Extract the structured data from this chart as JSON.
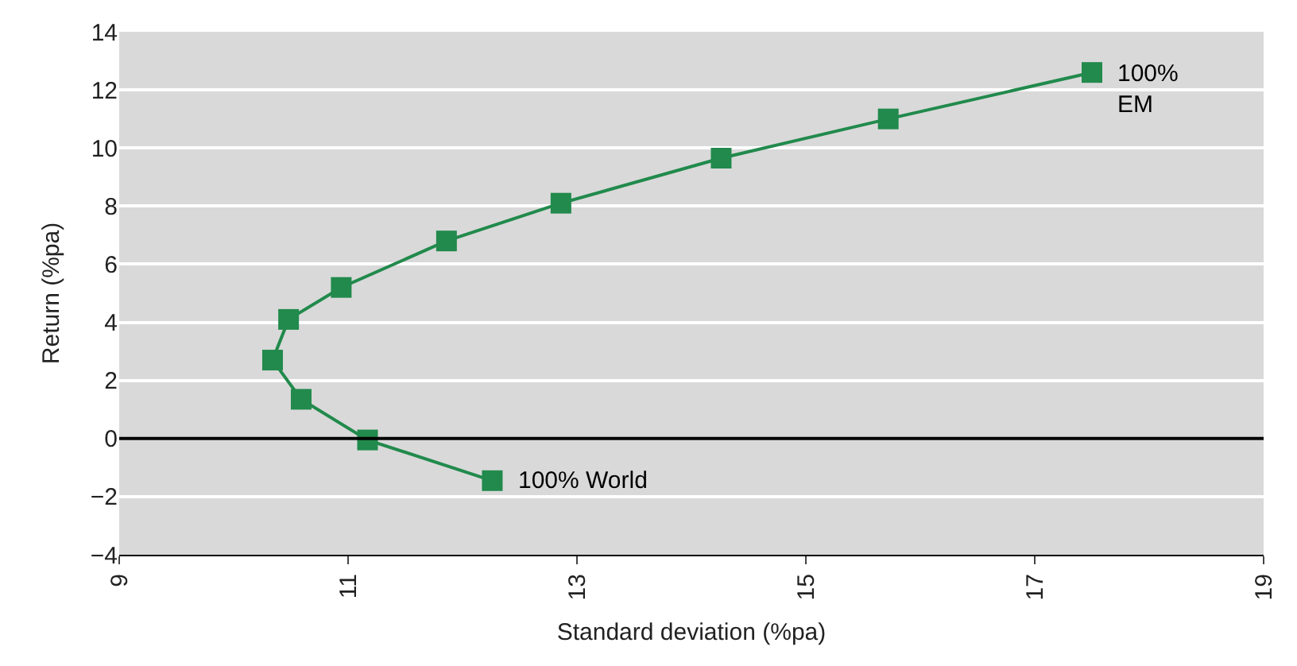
{
  "chart_data": {
    "type": "line",
    "xlabel": "Standard deviation (%pa)",
    "ylabel": "Return (%pa)",
    "x": [
      17.5,
      15.72,
      14.26,
      12.86,
      11.86,
      10.94,
      10.48,
      10.34,
      10.59,
      11.17,
      12.26
    ],
    "series": [
      {
        "color": "#218a4c",
        "values": [
          12.6,
          11.0,
          9.65,
          8.1,
          6.8,
          5.2,
          4.1,
          2.7,
          1.35,
          -0.05,
          -1.45
        ]
      }
    ],
    "xlim": [
      9,
      19
    ],
    "xticks": [
      9,
      11,
      13,
      15,
      17,
      19
    ],
    "ylim": [
      -4,
      14
    ],
    "yticks": [
      -4,
      -2,
      0,
      2,
      4,
      6,
      8,
      10,
      12,
      14
    ],
    "grid": "y",
    "marker": "square",
    "line_style": "solid",
    "legend": false,
    "ref_lines": [
      {
        "axis": "y",
        "value": 0,
        "color": "#000000"
      }
    ],
    "annotations": [
      {
        "text": "100%\nEM",
        "x": 17.5,
        "y": 12.6
      },
      {
        "text": "100% World",
        "x": 12.26,
        "y": -1.45
      }
    ]
  }
}
